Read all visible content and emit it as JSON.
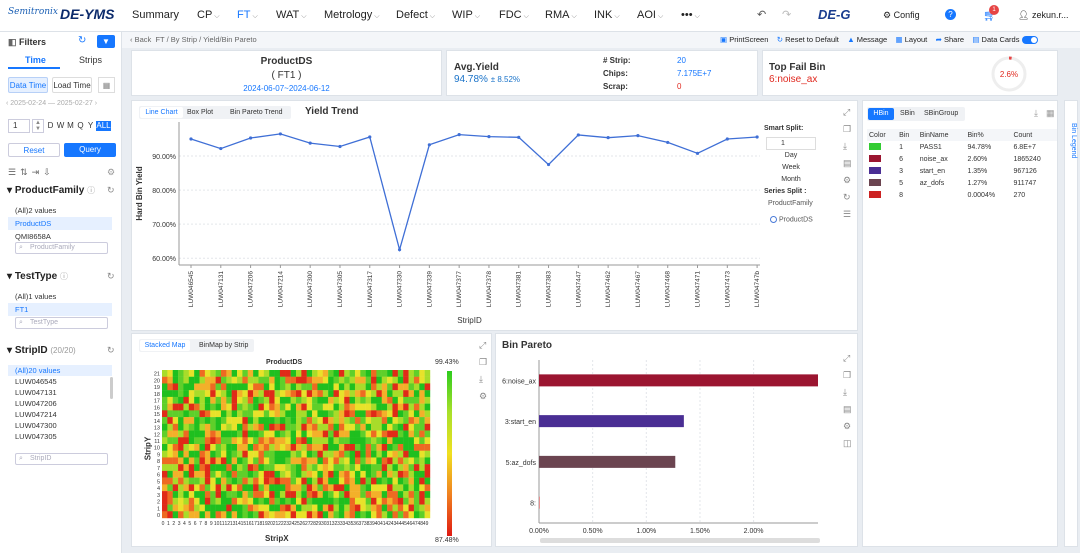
{
  "header": {
    "logo": "Semitronix",
    "app_name": "DE-YMS",
    "nav": [
      {
        "label": "Summary",
        "caret": false
      },
      {
        "label": "CP",
        "caret": true
      },
      {
        "label": "FT",
        "caret": true
      },
      {
        "label": "WAT",
        "caret": true
      },
      {
        "label": "Metrology",
        "caret": true
      },
      {
        "label": "Defect",
        "caret": true
      },
      {
        "label": "WIP",
        "caret": true
      },
      {
        "label": "FDC",
        "caret": true
      },
      {
        "label": "RMA",
        "caret": true
      },
      {
        "label": "INK",
        "caret": true
      },
      {
        "label": "AOI",
        "caret": true
      },
      {
        "label": "•••",
        "caret": true
      }
    ],
    "active_nav": "FT",
    "deg_label": "DE-G",
    "config_label": "Config",
    "help": "?",
    "cart_count": "1",
    "user": "zekun.r..."
  },
  "sidebar": {
    "title": "Filters",
    "tabs": [
      "Time",
      "Strips"
    ],
    "active_tab": "Time",
    "time_modes": [
      "Data Time",
      "Load Time"
    ],
    "active_mode": "Data Time",
    "date_range": "2025-02-24 — 2025-02-27",
    "period_value": "1",
    "periods": [
      "D",
      "W",
      "M",
      "Q",
      "Y",
      "ALL"
    ],
    "active_period": "ALL",
    "reset": "Reset",
    "query": "Query",
    "product_family": {
      "title": "ProductFamily",
      "values": [
        "(All)2 values",
        "ProductDS",
        "QMI8658A"
      ],
      "selected": "ProductDS",
      "search": "ProductFamily"
    },
    "test_type": {
      "title": "TestType",
      "values": [
        "(All)1 values",
        "FT1"
      ],
      "selected": "FT1",
      "search": "TestType"
    },
    "strip_id": {
      "title": "StripID",
      "count": "(20/20)",
      "values": [
        "(All)20 values",
        "LUW046545",
        "LUW047131",
        "LUW047206",
        "LUW047214",
        "LUW047300",
        "LUW047305"
      ],
      "selected": "(All)20 values",
      "search": "StripID"
    }
  },
  "toolbar": {
    "back": "Back",
    "breadcrumb": [
      "FT",
      "By Strip",
      "Yield/Bin Pareto"
    ],
    "actions": [
      "PrintScreen",
      "Reset to Default",
      "Message",
      "Layout",
      "Share",
      "Data Cards"
    ]
  },
  "summary": {
    "product": "ProductDS",
    "test": "( FT1 )",
    "dates": "2024-06-07~2024-06-12",
    "avg_yield_label": "Avg.Yield",
    "avg_yield": "94.78%",
    "avg_yield_pm": "± 8.52%",
    "strip_label": "# Strip:",
    "strip": "20",
    "chips_label": "Chips:",
    "chips": "7.175E+7",
    "scrap_label": "Scrap:",
    "scrap": "0",
    "top_fail_label": "Top Fail Bin",
    "top_fail": "6:noise_ax",
    "gauge": "2.6%"
  },
  "trend": {
    "tabs": [
      "Line Chart",
      "Box Plot",
      "Bin Pareto Trend"
    ],
    "active_tab": "Line Chart",
    "title": "Yield Trend",
    "smart_split_label": "Smart Split:",
    "smart_value": "1",
    "split_opts": [
      "Day",
      "Week",
      "Month"
    ],
    "series_split_label": "Series Split :",
    "series_split_value": "ProductFamily",
    "legend_item": "ProductDS"
  },
  "chart_data": [
    {
      "type": "line",
      "title": "Yield Trend",
      "xlabel": "StripID",
      "ylabel": "Hard Bin Yield",
      "ylim": [
        58,
        100
      ],
      "yticks": [
        "60.00%",
        "70.00%",
        "80.00%",
        "90.00%"
      ],
      "categories": [
        "LUW046545",
        "LUW047131",
        "LUW047206",
        "LUW047214",
        "LUW047300",
        "LUW047305",
        "LUW047317",
        "LUW047330",
        "LUW047339",
        "LUW047377",
        "LUW047378",
        "LUW047381",
        "LUW047383",
        "LUW047447",
        "LUW047462",
        "LUW047467",
        "LUW047468",
        "LUW047471",
        "LUW047473",
        "LUW04747b"
      ],
      "series": [
        {
          "name": "ProductDS",
          "values": [
            95.0,
            92.2,
            95.3,
            96.5,
            93.8,
            92.8,
            95.6,
            62.5,
            93.3,
            96.3,
            95.7,
            95.5,
            87.5,
            96.2,
            95.4,
            96.0,
            94.0,
            90.8,
            95.0,
            95.6
          ]
        }
      ]
    },
    {
      "type": "heatmap",
      "title": "ProductDS",
      "xlabel": "StripX",
      "ylabel": "StripY",
      "legend_max": "99.43%",
      "legend_min": "87.48%"
    },
    {
      "type": "bar",
      "title": "Bin Pareto",
      "categories": [
        "6:noise_ax",
        "3:start_en",
        "5:az_dofs",
        "8:"
      ],
      "values": [
        2.6,
        1.35,
        1.27,
        0.0004
      ],
      "xticks": [
        "0.00%",
        "0.50%",
        "1.00%",
        "1.50%",
        "2.00%"
      ],
      "xlim": [
        0,
        2.6
      ],
      "colors": [
        "#9b1530",
        "#4a2e94",
        "#6b4450",
        "#cc2222"
      ]
    }
  ],
  "stacked": {
    "tabs": [
      "Stacked Map",
      "BinMap by Strip"
    ],
    "active_tab": "Stacked Map"
  },
  "bin_table": {
    "tabs": [
      "HBin",
      "SBin",
      "SBinGroup"
    ],
    "active_tab": "HBin",
    "side_label": "Bin Legend",
    "headers": [
      "Color",
      "Bin",
      "BinName",
      "Bin%",
      "Count"
    ],
    "rows": [
      {
        "color": "#33cc33",
        "bin": "1",
        "name": "PASS1",
        "pct": "94.78%",
        "count": "6.8E+7"
      },
      {
        "color": "#9b1530",
        "bin": "6",
        "name": "noise_ax",
        "pct": "2.60%",
        "count": "1865240"
      },
      {
        "color": "#4a2e94",
        "bin": "3",
        "name": "start_en",
        "pct": "1.35%",
        "count": "967126"
      },
      {
        "color": "#6b4450",
        "bin": "5",
        "name": "az_dofs",
        "pct": "1.27%",
        "count": "911747"
      },
      {
        "color": "#cc2222",
        "bin": "8",
        "name": "",
        "pct": "0.0004%",
        "count": "270"
      }
    ]
  }
}
